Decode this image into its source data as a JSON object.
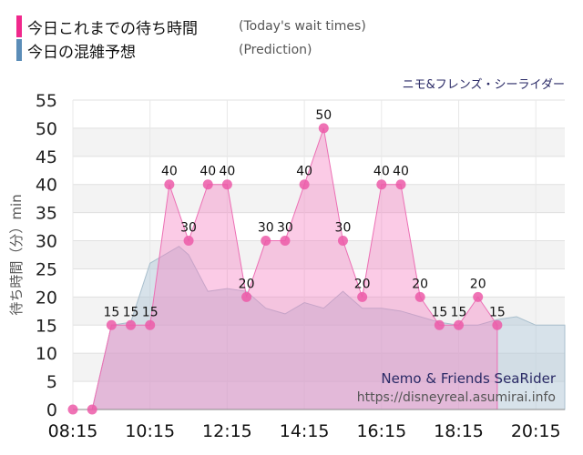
{
  "legend": {
    "actual_label": "今日これまでの待ち時間",
    "actual_sub": "(Today's wait times)",
    "prediction_label": "今日の混雑予想",
    "prediction_sub": "(Prediction)"
  },
  "attraction_name_jp": "ニモ&フレンズ・シーライダー",
  "watermark": {
    "name": "Nemo & Friends SeaRider",
    "url": "https://disneyreal.asumirai.info"
  },
  "colors": {
    "actual": "#f0288c",
    "prediction": "#5b8db8"
  },
  "chart_data": {
    "type": "area",
    "ylabel": "待ち時間（分）min",
    "ylim": [
      0,
      55
    ],
    "yticks": [
      0,
      5,
      10,
      15,
      20,
      25,
      30,
      35,
      40,
      45,
      50,
      55
    ],
    "xlim": [
      "08:15",
      "21:00"
    ],
    "xticks": [
      "08:15",
      "10:15",
      "12:15",
      "14:15",
      "16:15",
      "18:15",
      "20:15"
    ],
    "grid": true,
    "series": [
      {
        "name": "今日これまでの待ち時間",
        "points": [
          [
            "08:15",
            0
          ],
          [
            "08:45",
            0
          ],
          [
            "09:15",
            15
          ],
          [
            "09:45",
            15
          ],
          [
            "10:15",
            15
          ],
          [
            "10:45",
            40
          ],
          [
            "11:15",
            30
          ],
          [
            "11:45",
            40
          ],
          [
            "12:15",
            40
          ],
          [
            "12:45",
            20
          ],
          [
            "13:15",
            30
          ],
          [
            "13:45",
            30
          ],
          [
            "14:15",
            40
          ],
          [
            "14:45",
            50
          ],
          [
            "15:15",
            30
          ],
          [
            "15:45",
            20
          ],
          [
            "16:15",
            40
          ],
          [
            "16:45",
            40
          ],
          [
            "17:15",
            20
          ],
          [
            "17:45",
            15
          ],
          [
            "18:15",
            15
          ],
          [
            "18:45",
            20
          ],
          [
            "19:15",
            15
          ]
        ]
      },
      {
        "name": "今日の混雑予想",
        "points": [
          [
            "08:15",
            0
          ],
          [
            "08:45",
            0
          ],
          [
            "09:15",
            15
          ],
          [
            "09:45",
            15.5
          ],
          [
            "10:15",
            26
          ],
          [
            "10:30",
            27
          ],
          [
            "11:00",
            29
          ],
          [
            "11:15",
            27.5
          ],
          [
            "11:45",
            21
          ],
          [
            "12:15",
            21.5
          ],
          [
            "12:45",
            21
          ],
          [
            "13:15",
            18
          ],
          [
            "13:45",
            17
          ],
          [
            "14:15",
            19
          ],
          [
            "14:45",
            18
          ],
          [
            "15:15",
            21
          ],
          [
            "15:45",
            18
          ],
          [
            "16:15",
            18
          ],
          [
            "16:45",
            17.5
          ],
          [
            "17:15",
            16.5
          ],
          [
            "17:45",
            15.5
          ],
          [
            "18:15",
            15
          ],
          [
            "18:45",
            15
          ],
          [
            "19:15",
            16
          ],
          [
            "19:45",
            16.5
          ],
          [
            "20:15",
            15
          ],
          [
            "21:00",
            15
          ]
        ]
      }
    ]
  }
}
